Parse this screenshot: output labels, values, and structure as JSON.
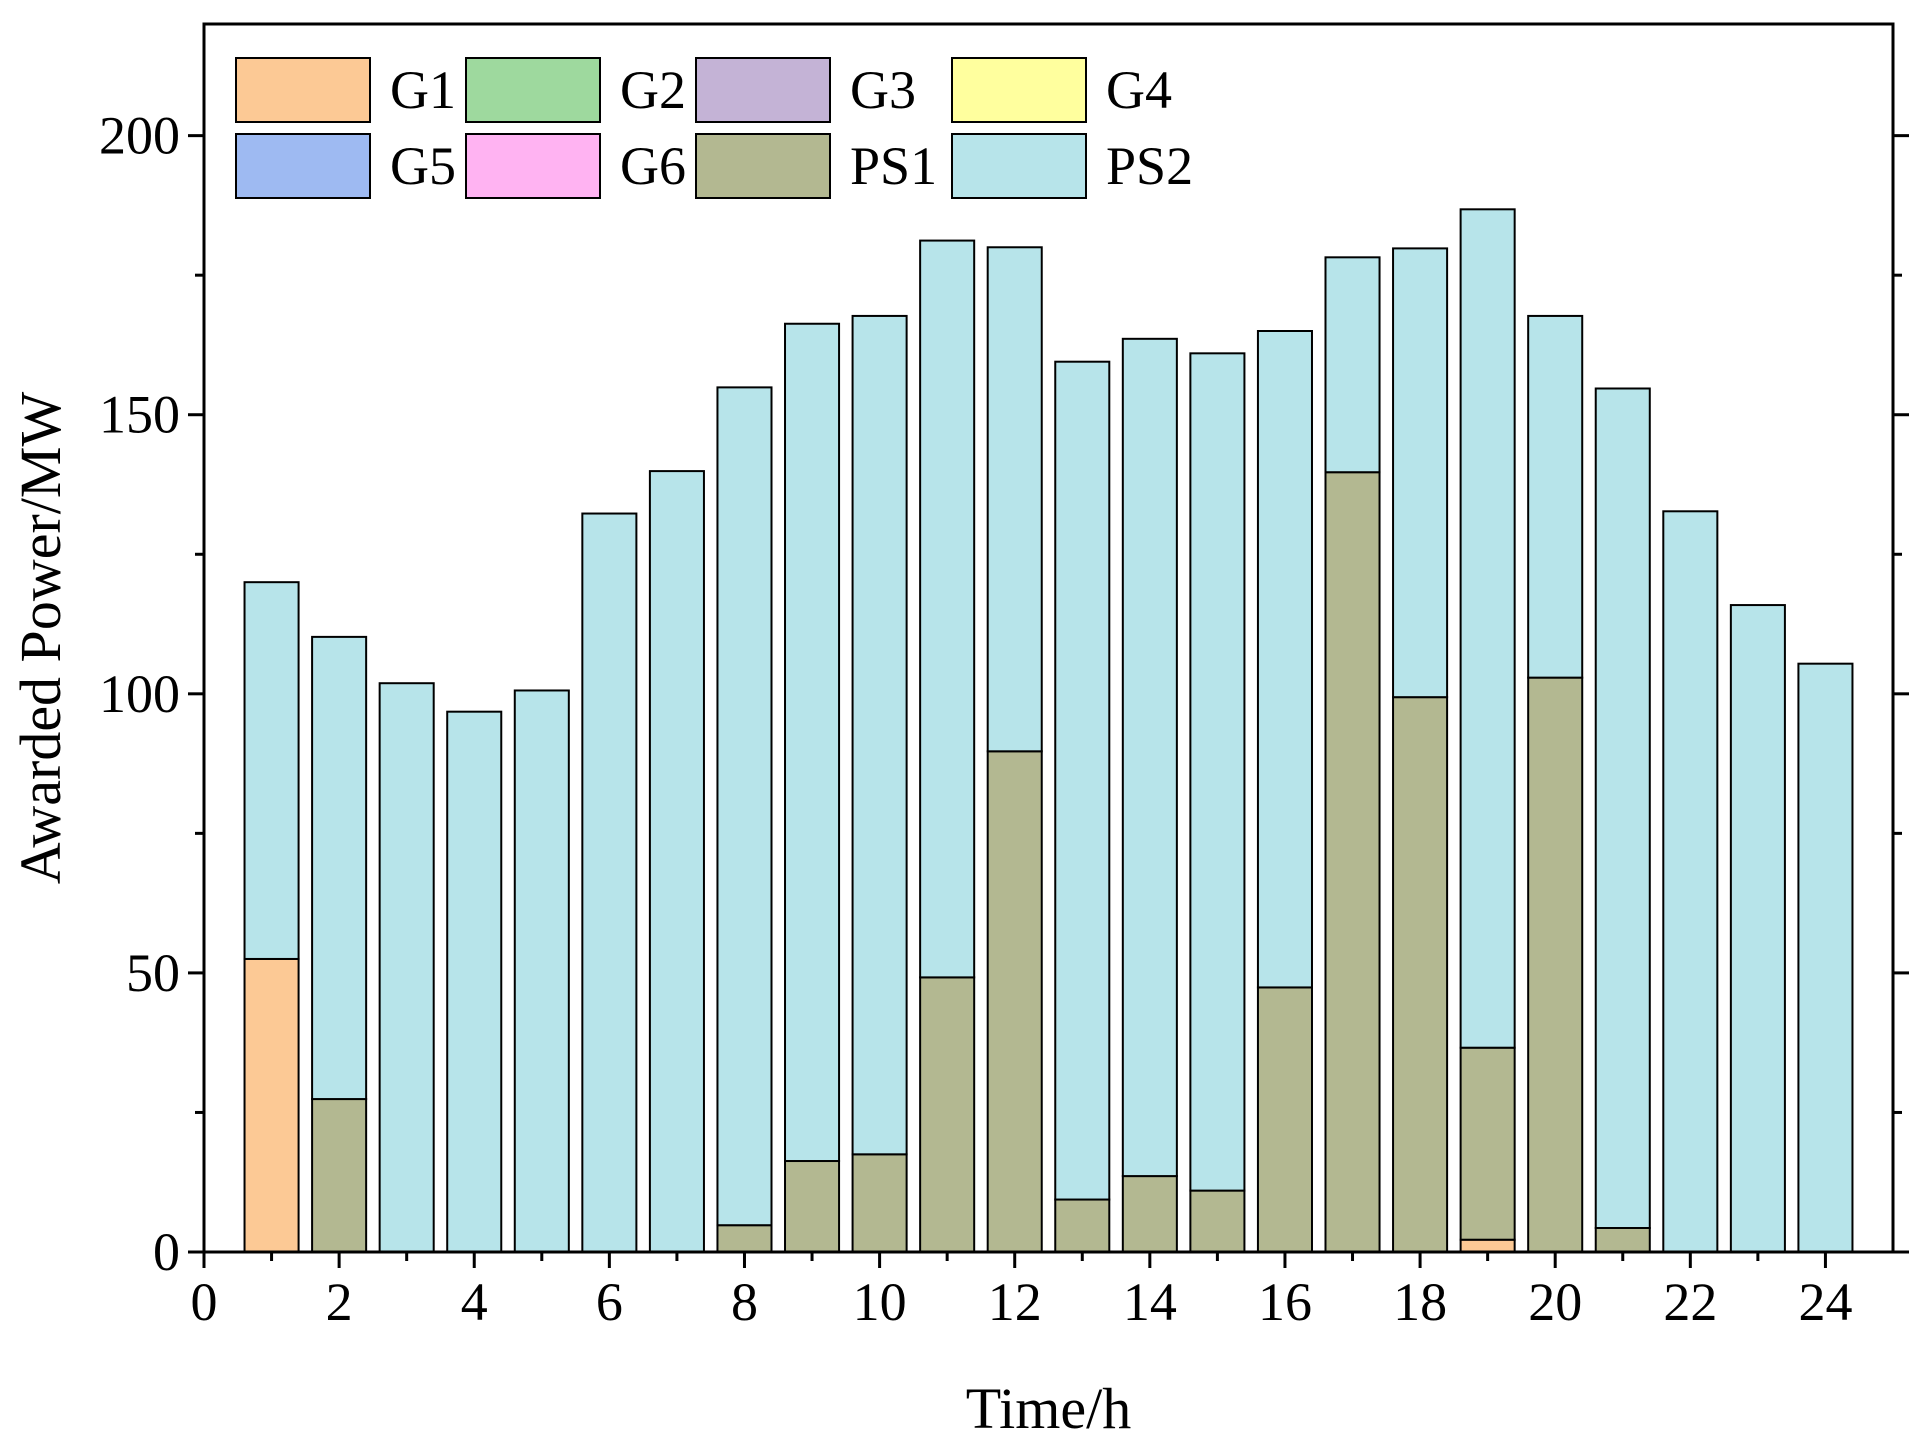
{
  "chart_data": {
    "type": "bar",
    "stacked": true,
    "xlabel": "Time/h",
    "ylabel": "Awarded Power/MW",
    "xlim": [
      0,
      25
    ],
    "ylim": [
      0,
      220
    ],
    "xticks": [
      0,
      2,
      4,
      6,
      8,
      10,
      12,
      14,
      16,
      18,
      20,
      22,
      24
    ],
    "yticks": [
      0,
      50,
      100,
      150,
      200
    ],
    "legend_position": "top-left",
    "grid": false,
    "x": [
      1,
      2,
      3,
      4,
      5,
      6,
      7,
      8,
      9,
      10,
      11,
      12,
      13,
      14,
      15,
      16,
      17,
      18,
      19,
      20,
      21,
      22,
      23,
      24
    ],
    "series": [
      {
        "name": "G1",
        "color": "#FCC995",
        "values": [
          52.5,
          0,
          0,
          0,
          0,
          0,
          0,
          0,
          0,
          0,
          0,
          0,
          0,
          0,
          0,
          0,
          0,
          0,
          2.2,
          0,
          0,
          0,
          0,
          0
        ]
      },
      {
        "name": "G2",
        "color": "#9ED99E",
        "values": [
          0,
          0,
          0,
          0,
          0,
          0,
          0,
          0,
          0,
          0,
          0,
          0,
          0,
          0,
          0,
          0,
          0,
          0,
          0,
          0,
          0,
          0,
          0,
          0
        ]
      },
      {
        "name": "G3",
        "color": "#C4B3D6",
        "values": [
          0,
          0,
          0,
          0,
          0,
          0,
          0,
          0,
          0,
          0,
          0,
          0,
          0,
          0,
          0,
          0,
          0,
          0,
          0,
          0,
          0,
          0,
          0,
          0
        ]
      },
      {
        "name": "G4",
        "color": "#FFFF9E",
        "values": [
          0,
          0,
          0,
          0,
          0,
          0,
          0,
          0,
          0,
          0,
          0,
          0,
          0,
          0,
          0,
          0,
          0,
          0,
          0,
          0,
          0,
          0,
          0,
          0
        ]
      },
      {
        "name": "G5",
        "color": "#9EBAF2",
        "values": [
          0,
          0,
          0,
          0,
          0,
          0,
          0,
          0,
          0,
          0,
          0,
          0,
          0,
          0,
          0,
          0,
          0,
          0,
          0,
          0,
          0,
          0,
          0,
          0
        ]
      },
      {
        "name": "G6",
        "color": "#FFB3F2",
        "values": [
          0,
          0,
          0,
          0,
          0,
          0,
          0,
          0,
          0,
          0,
          0,
          0,
          0,
          0,
          0,
          0,
          0,
          0,
          0,
          0,
          0,
          0,
          0,
          0
        ]
      },
      {
        "name": "PS1",
        "color": "#B3B891",
        "values": [
          0,
          27.4,
          0,
          0,
          0,
          0,
          0,
          4.8,
          16.3,
          17.5,
          49.2,
          89.7,
          9.4,
          13.6,
          11.0,
          47.4,
          139.7,
          99.4,
          34.4,
          102.9,
          4.3,
          0,
          0,
          0
        ]
      },
      {
        "name": "PS2",
        "color": "#B7E4EA",
        "values": [
          67.5,
          82.8,
          101.9,
          96.8,
          100.6,
          132.3,
          139.9,
          150.1,
          150.0,
          150.2,
          132.0,
          90.3,
          150.1,
          150.0,
          150.0,
          117.6,
          38.5,
          80.4,
          150.2,
          64.8,
          150.4,
          132.7,
          115.9,
          105.4
        ]
      }
    ]
  }
}
